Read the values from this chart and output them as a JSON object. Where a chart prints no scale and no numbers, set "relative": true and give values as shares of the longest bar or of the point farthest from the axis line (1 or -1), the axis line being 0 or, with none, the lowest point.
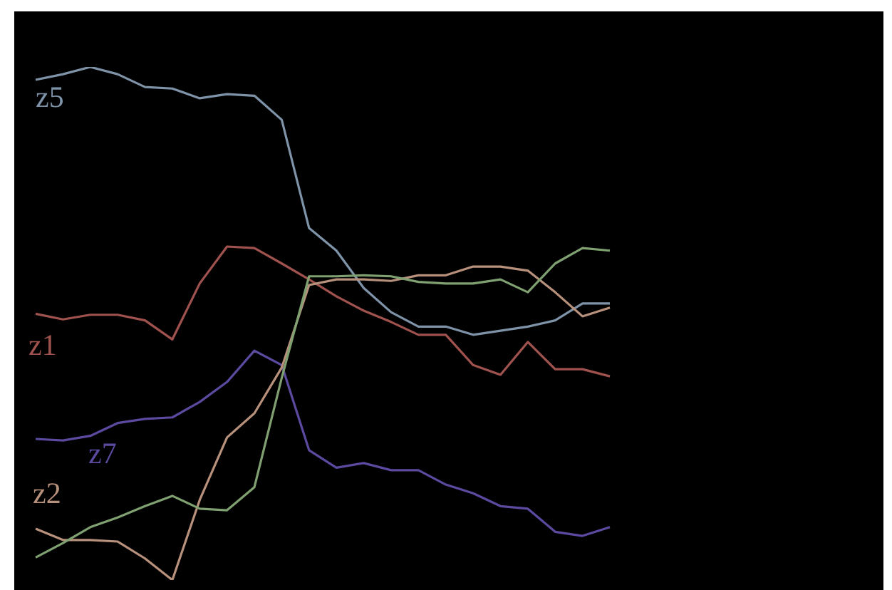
{
  "chart_data": {
    "type": "line",
    "relative": true,
    "categories": [
      null,
      null,
      null,
      null,
      null,
      null,
      null,
      null,
      null,
      null,
      null,
      null,
      null,
      null,
      null,
      null,
      null,
      null,
      null,
      null,
      null,
      null
    ],
    "legend": false,
    "grid": false,
    "marker": "none",
    "series": [
      {
        "name": "z5",
        "color": "#7f93a8",
        "values": [
          0.975,
          0.986,
          1,
          0.986,
          0.961,
          0.958,
          0.939,
          0.947,
          0.944,
          0.897,
          0.686,
          0.642,
          0.569,
          0.522,
          0.494,
          0.494,
          0.478,
          0.486,
          0.494,
          0.506,
          0.539,
          0.539
        ]
      },
      {
        "name": "z1",
        "color": "#a0524e",
        "values": [
          0.519,
          0.508,
          0.517,
          0.517,
          0.506,
          0.469,
          0.578,
          0.65,
          0.647,
          0.617,
          0.586,
          0.553,
          0.525,
          0.503,
          0.478,
          0.478,
          0.419,
          0.4,
          0.464,
          0.411,
          0.411,
          0.397
        ]
      },
      {
        "name": "z7",
        "color": "#5c4aa0",
        "values": [
          0.275,
          0.272,
          0.281,
          0.306,
          0.314,
          0.317,
          0.347,
          0.386,
          0.447,
          0.419,
          0.253,
          0.219,
          0.228,
          0.214,
          0.214,
          0.186,
          0.169,
          0.144,
          0.139,
          0.094,
          0.086,
          0.103
        ]
      },
      {
        "name": "z2",
        "color": "#b8917c",
        "values": [
          0.1,
          0.078,
          0.078,
          0.075,
          0.042,
          0,
          0.156,
          0.278,
          0.325,
          0.414,
          0.575,
          0.586,
          0.586,
          0.583,
          0.594,
          0.594,
          0.611,
          0.611,
          0.603,
          0.561,
          0.514,
          0.531
        ]
      },
      {
        "color": "#7fa070",
        "values": [
          0.044,
          0.072,
          0.103,
          0.122,
          0.144,
          0.164,
          0.139,
          0.136,
          0.181,
          0.394,
          0.592,
          0.592,
          0.594,
          0.592,
          0.581,
          0.578,
          0.578,
          0.586,
          0.561,
          0.617,
          0.647,
          0.642
        ]
      }
    ]
  }
}
